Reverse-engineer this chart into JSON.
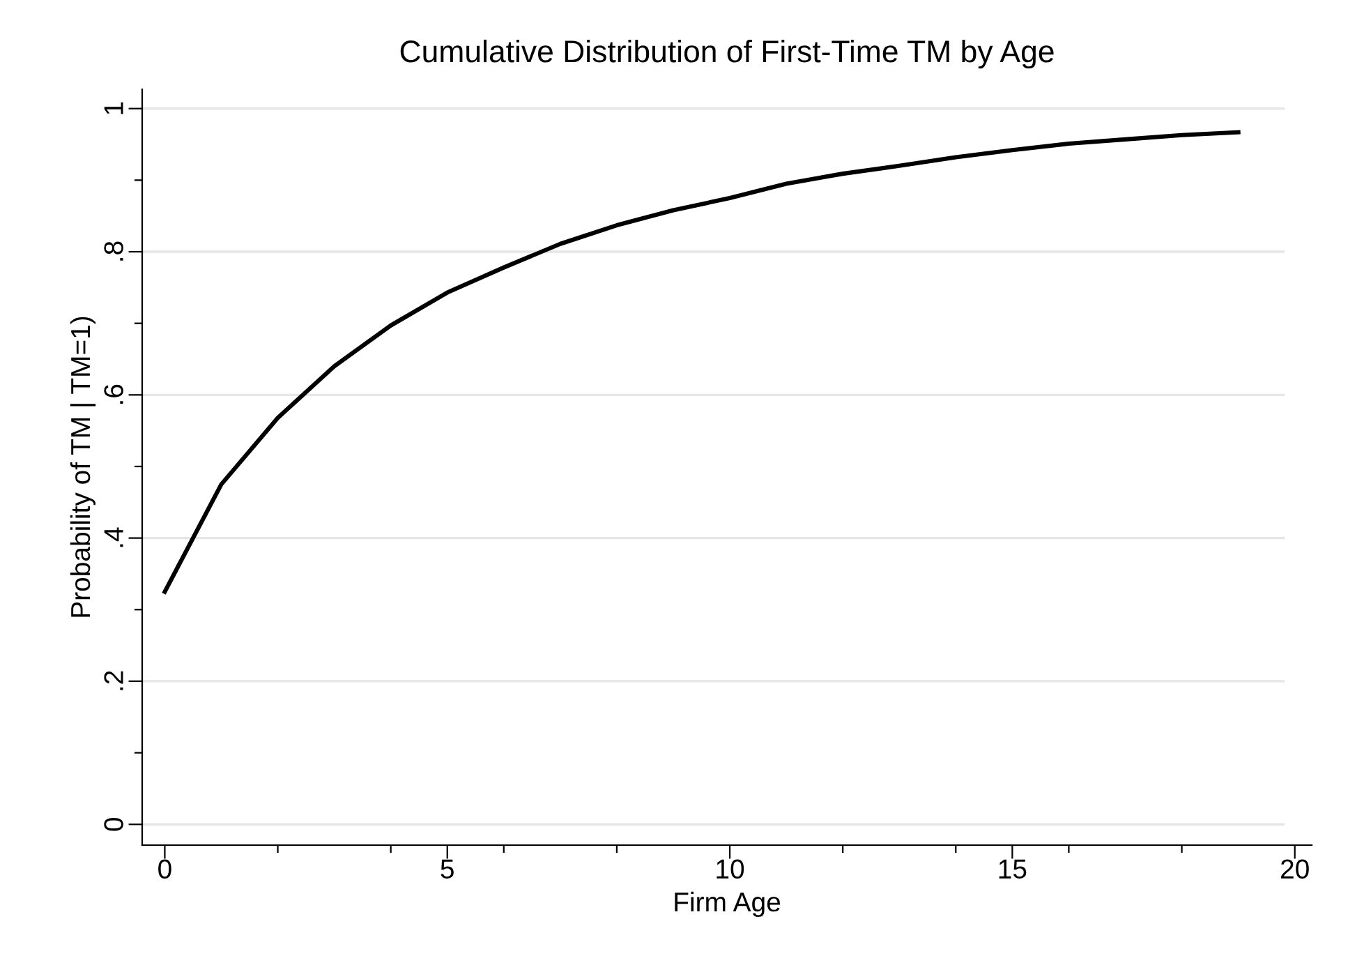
{
  "chart_data": {
    "type": "line",
    "title": "Cumulative Distribution of First-Time TM by Age",
    "xlabel": "Firm Age",
    "ylabel": "Probability of TM | TM=1)",
    "x": [
      0,
      1,
      2,
      3,
      4,
      5,
      6,
      7,
      8,
      9,
      10,
      11,
      12,
      13,
      14,
      15,
      16,
      17,
      18,
      19
    ],
    "series": [
      {
        "color": "#000000",
        "values": [
          0.325,
          0.475,
          0.568,
          0.64,
          0.697,
          0.743,
          0.778,
          0.811,
          0.837,
          0.858,
          0.875,
          0.895,
          0.909,
          0.92,
          0.932,
          0.942,
          0.951,
          0.957,
          0.963,
          0.967
        ]
      }
    ],
    "xlim": [
      -0.4,
      20.3
    ],
    "ylim": [
      -0.029,
      1.027
    ],
    "xticks": [
      0,
      {
        "value": 2,
        "label": null
      },
      {
        "value": 4,
        "label": null
      },
      5,
      {
        "value": 6,
        "label": null
      },
      {
        "value": 8,
        "label": null
      },
      10,
      {
        "value": 12,
        "label": null
      },
      {
        "value": 14,
        "label": null
      },
      15,
      {
        "value": 16,
        "label": null
      },
      {
        "value": 18,
        "label": null
      },
      20
    ],
    "yticks": [
      {
        "value": 0,
        "label": "0"
      },
      {
        "value": 0.1,
        "label": null
      },
      {
        "value": 0.2,
        "label": ".2"
      },
      {
        "value": 0.3,
        "label": null
      },
      {
        "value": 0.4,
        "label": ".4"
      },
      {
        "value": 0.5,
        "label": null
      },
      {
        "value": 0.6,
        "label": ".6"
      },
      {
        "value": 0.7,
        "label": null
      },
      {
        "value": 0.8,
        "label": ".8"
      },
      {
        "value": 0.9,
        "label": null
      },
      {
        "value": 1,
        "label": "1"
      }
    ],
    "grid": "y",
    "marker": "none",
    "line_style": "solid"
  }
}
